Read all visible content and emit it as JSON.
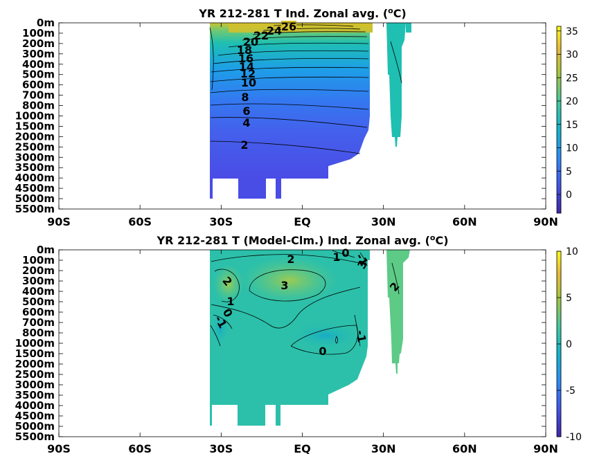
{
  "chart_data": [
    {
      "type": "heatmap",
      "title": "YR 212-281 T Ind. Zonal avg. (",
      "title_sup": "o",
      "title_end": "C)",
      "x_ticks": [
        "90S",
        "60S",
        "30S",
        "EQ",
        "30N",
        "60N",
        "90N"
      ],
      "x_tick_values": [
        -90,
        -60,
        -30,
        0,
        30,
        60,
        90
      ],
      "y_ticks": [
        "0m",
        "100m",
        "200m",
        "300m",
        "400m",
        "500m",
        "600m",
        "700m",
        "800m",
        "1000m",
        "1500m",
        "2000m",
        "2500m",
        "3000m",
        "3500m",
        "4000m",
        "4500m",
        "5000m",
        "5500m"
      ],
      "colorbar": {
        "min": -4,
        "max": 36,
        "ticks": [
          "0",
          "5",
          "10",
          "15",
          "20",
          "25",
          "30",
          "35"
        ],
        "tick_values": [
          0,
          5,
          10,
          15,
          20,
          25,
          30,
          35
        ]
      },
      "contour_labels": [
        {
          "text": "26",
          "lat": -2,
          "depth_level": 0.4
        },
        {
          "text": "24",
          "lat": -7,
          "depth_level": 0.8
        },
        {
          "text": "22",
          "lat": -11,
          "depth_level": 1.2
        },
        {
          "text": "20",
          "lat": -14,
          "depth_level": 1.6
        },
        {
          "text": "18",
          "lat": -17,
          "depth_level": 2.3
        },
        {
          "text": "16",
          "lat": -16,
          "depth_level": 3.2
        },
        {
          "text": "14",
          "lat": -15,
          "depth_level": 4.0
        },
        {
          "text": "12",
          "lat": -15,
          "depth_level": 4.8
        },
        {
          "text": "10",
          "lat": -15,
          "depth_level": 5.8
        },
        {
          "text": "8",
          "lat": -16,
          "depth_level": 7.2
        },
        {
          "text": "6",
          "lat": -16,
          "depth_level": 8.6
        },
        {
          "text": "4",
          "lat": -16,
          "depth_level": 9.7
        },
        {
          "text": "2",
          "lat": -17,
          "depth_level": 11.8
        }
      ]
    },
    {
      "type": "heatmap",
      "title": "YR 212-281 T (Model-Clm.) Ind. Zonal avg. (",
      "title_sup": "o",
      "title_end": "C)",
      "x_ticks": [
        "90S",
        "60S",
        "30S",
        "EQ",
        "30N",
        "60N",
        "90N"
      ],
      "x_tick_values": [
        -90,
        -60,
        -30,
        0,
        30,
        60,
        90
      ],
      "y_ticks": [
        "0m",
        "100m",
        "200m",
        "300m",
        "400m",
        "500m",
        "600m",
        "700m",
        "800m",
        "1000m",
        "1500m",
        "2000m",
        "2500m",
        "3000m",
        "3500m",
        "4000m",
        "4500m",
        "5000m",
        "5500m"
      ],
      "colorbar": {
        "min": -10,
        "max": 10,
        "ticks": [
          "-10",
          "-5",
          "0",
          "5",
          "10"
        ],
        "tick_values": [
          -10,
          -5,
          0,
          5,
          10
        ]
      },
      "contour_labels": [
        {
          "text": "2",
          "lat": -2,
          "depth_level": 0.9
        },
        {
          "text": "1",
          "lat": 10,
          "depth_level": 0.7
        },
        {
          "text": "0",
          "lat": 12,
          "depth_level": 0.2
        },
        {
          "text": "-1",
          "lat": 16,
          "depth_level": 0.7
        },
        {
          "text": "3",
          "lat": 18,
          "depth_level": 1.3
        },
        {
          "text": "2",
          "lat": -29,
          "depth_level": 2.8
        },
        {
          "text": "3",
          "lat": -7,
          "depth_level": 3.3
        },
        {
          "text": "2",
          "lat": 32,
          "depth_level": 3.5
        },
        {
          "text": "1",
          "lat": -28,
          "depth_level": 4.9
        },
        {
          "text": "0",
          "lat": -30,
          "depth_level": 5.9
        },
        {
          "text": "-1",
          "lat": -32,
          "depth_level": 7.0
        },
        {
          "text": "-1",
          "lat": 19,
          "depth_level": 8.5
        },
        {
          "text": "0",
          "lat": 6,
          "depth_level": 9.9
        }
      ]
    }
  ]
}
